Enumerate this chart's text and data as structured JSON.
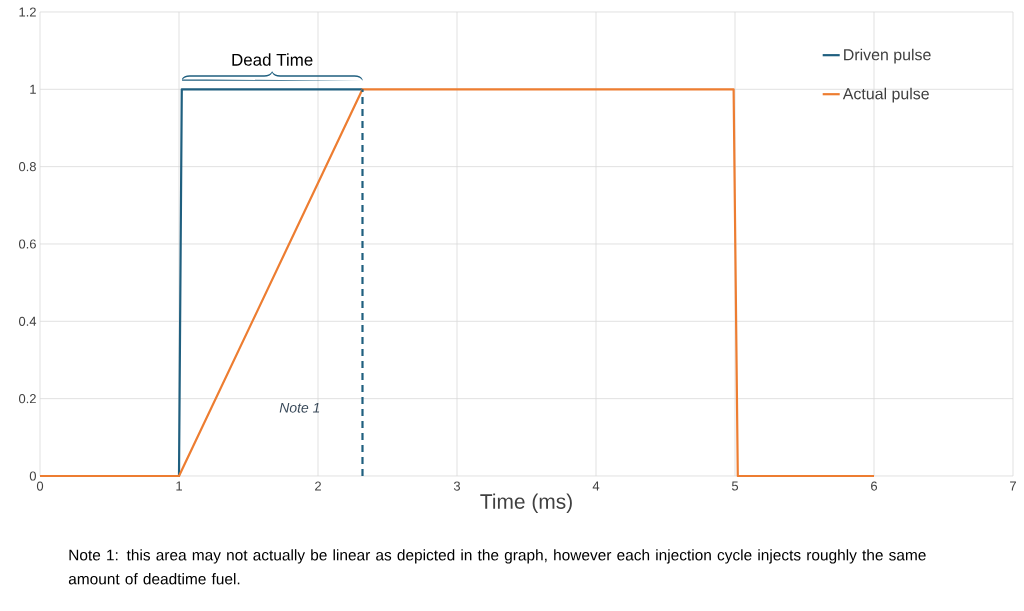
{
  "chart_data": {
    "type": "line",
    "xlabel": "Time (ms)",
    "series": [
      {
        "name": "Driven pulse",
        "color": "#1f5f7f",
        "x": [
          0,
          1,
          1.02,
          2.32
        ],
        "values": [
          0,
          0,
          1,
          1
        ]
      },
      {
        "name": "Actual pulse",
        "color": "#ed7d31",
        "x": [
          0,
          1,
          2.32,
          4.99,
          5.02,
          6
        ],
        "values": [
          0,
          0,
          1,
          1,
          0,
          0
        ]
      },
      {
        "type": "line",
        "color": "#1f5f7f",
        "line_style": "dashed",
        "x": [
          2.32,
          2.32
        ],
        "values": [
          0,
          1
        ]
      }
    ],
    "xlim": [
      0,
      7
    ],
    "xticks": [
      0,
      1,
      2,
      3,
      4,
      5,
      6,
      7
    ],
    "ylim": [
      0,
      1.2
    ],
    "yticks": [
      0,
      0.2,
      0.4,
      0.6,
      0.8,
      1,
      1.2
    ],
    "grid": true,
    "legend": "top right",
    "marker": "none",
    "line_style": "solid",
    "annotations": [
      "Dead Time",
      "Note 1",
      "Note 1: this area may not actually be linear as depicted in the graph, however each injection cycle injects roughly the same amount of deadtime fuel."
    ]
  }
}
